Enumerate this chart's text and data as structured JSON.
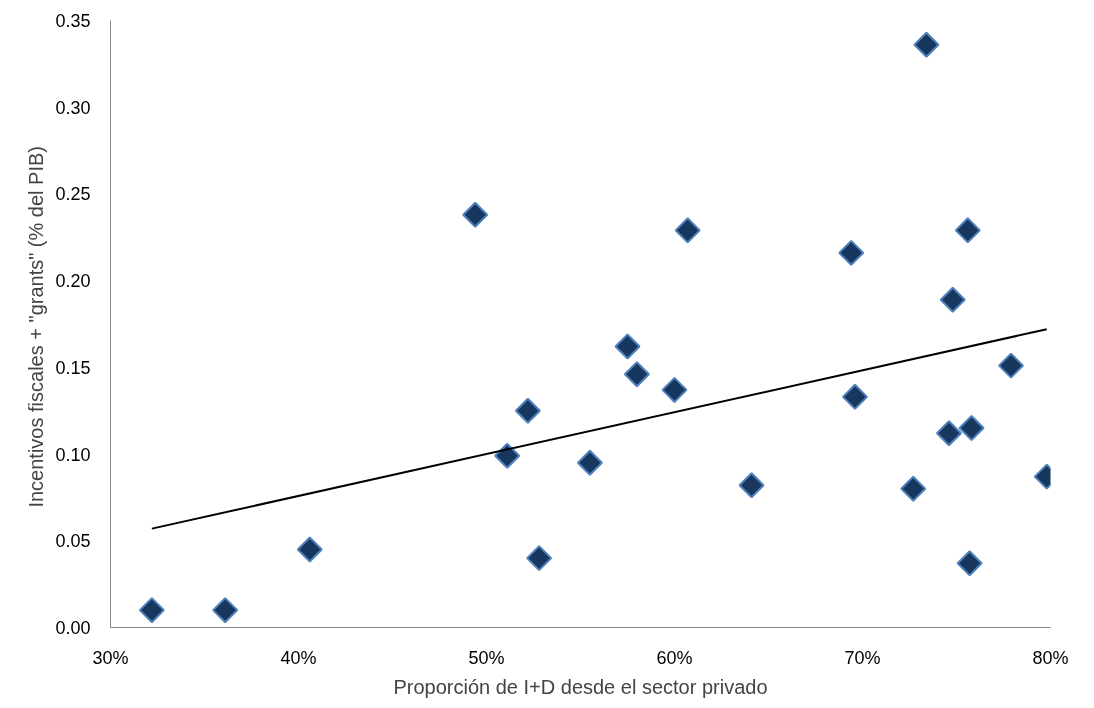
{
  "chart_data": {
    "type": "scatter",
    "xlabel": "Proporción de I+D desde el sector privado",
    "ylabel": "Incentivos fiscales + \"grants\"  (% del PIB)",
    "xlim": [
      30,
      80
    ],
    "ylim": [
      0,
      0.35
    ],
    "xticks": [
      {
        "value": 30,
        "label": "30%"
      },
      {
        "value": 40,
        "label": "40%"
      },
      {
        "value": 50,
        "label": "50%"
      },
      {
        "value": 60,
        "label": "60%"
      },
      {
        "value": 70,
        "label": "70%"
      },
      {
        "value": 80,
        "label": "80%"
      }
    ],
    "yticks": [
      {
        "value": 0,
        "label": "0.00"
      },
      {
        "value": 0.05,
        "label": "0.05"
      },
      {
        "value": 0.1,
        "label": "0.10"
      },
      {
        "value": 0.15,
        "label": "0.15"
      },
      {
        "value": 0.2,
        "label": "0.20"
      },
      {
        "value": 0.25,
        "label": "0.25"
      },
      {
        "value": 0.3,
        "label": "0.30"
      },
      {
        "value": 0.35,
        "label": "0.35"
      }
    ],
    "grid": false,
    "series": [
      {
        "marker": "diamond",
        "color": "#17375e",
        "x": [
          32.2,
          36.1,
          40.6,
          49.4,
          51.1,
          52.2,
          52.8,
          55.5,
          57.5,
          58.0,
          60.0,
          60.7,
          64.1,
          69.4,
          69.6,
          72.7,
          73.4,
          74.6,
          74.8,
          75.6,
          75.8,
          75.7,
          77.9,
          79.8
        ],
        "values": [
          0.01,
          0.01,
          0.045,
          0.238,
          0.099,
          0.125,
          0.04,
          0.095,
          0.162,
          0.146,
          0.137,
          0.229,
          0.082,
          0.216,
          0.133,
          0.08,
          0.336,
          0.112,
          0.189,
          0.229,
          0.115,
          0.037,
          0.151,
          0.087
        ]
      },
      {
        "type": "line",
        "color": "#000000",
        "x": [
          32.2,
          79.8
        ],
        "values": [
          0.057,
          0.172
        ]
      }
    ]
  }
}
